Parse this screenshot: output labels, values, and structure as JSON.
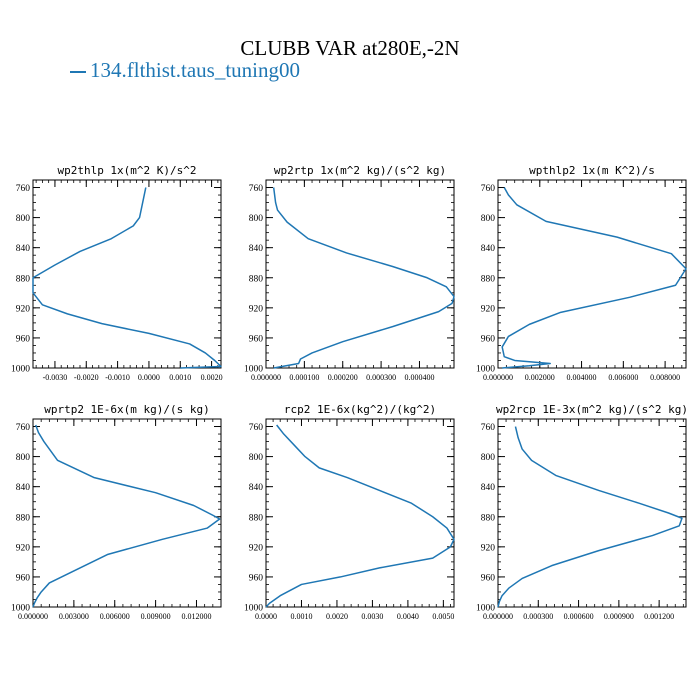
{
  "figure": {
    "title": "CLUBB VAR at280E,-2N",
    "legend_label": "134.flthist.taus_tuning00",
    "line_color": "#1f77b4"
  },
  "chart_data": [
    {
      "type": "line",
      "title": "wp2thlp  1x(m^2 K)/s^2",
      "xlim": [
        -0.0037,
        0.0023
      ],
      "ylim": [
        1000,
        750
      ],
      "xticks": [
        -0.003,
        -0.002,
        -0.001,
        0.0,
        0.001,
        0.002
      ],
      "xticklabels": [
        "-0.0030",
        "-0.0020",
        "-0.0010",
        "0.0000",
        "0.0010",
        "0.0020"
      ],
      "yticks": [
        760,
        800,
        840,
        880,
        920,
        960,
        1000
      ],
      "yticklabels": [
        "760",
        "800",
        "840",
        "880",
        "920",
        "960",
        "1000"
      ],
      "series": [
        {
          "x": [
            -0.0001,
            -0.0002,
            -0.0003,
            -0.0005,
            -0.0012,
            -0.0022,
            -0.003,
            -0.0037,
            -0.0037,
            -0.0034,
            -0.0026,
            -0.0015,
            0.0,
            0.0013,
            0.0018,
            0.0021,
            0.0023,
            0.001
          ],
          "y": [
            760,
            780,
            800,
            811,
            828,
            845,
            863,
            880,
            900,
            916,
            928,
            941,
            954,
            968,
            980,
            990,
            998,
            1000
          ]
        }
      ]
    },
    {
      "type": "line",
      "title": "wp2rtp  1x(m^2 kg)/(s^2 kg)",
      "xlim": [
        0.0,
        0.00049
      ],
      "ylim": [
        1000,
        750
      ],
      "xticks": [
        0.0,
        0.0001,
        0.0002,
        0.0003,
        0.0004
      ],
      "xticklabels": [
        "0.000000",
        "0.000100",
        "0.000200",
        "0.000300",
        "0.000400"
      ],
      "yticks": [
        760,
        800,
        840,
        880,
        920,
        960,
        1000
      ],
      "yticklabels": [
        "760",
        "800",
        "840",
        "880",
        "920",
        "960",
        "1000"
      ],
      "series": [
        {
          "x": [
            2e-05,
            2.5e-05,
            3e-05,
            5.5e-05,
            0.00011,
            0.00021,
            0.00033,
            0.00042,
            0.00047,
            0.00049,
            0.000485,
            0.00045,
            0.00033,
            0.0002,
            0.00012,
            9e-05,
            8.5e-05,
            2e-05
          ],
          "y": [
            760,
            780,
            790,
            806,
            828,
            847,
            865,
            880,
            892,
            905,
            914,
            925,
            945,
            965,
            980,
            988,
            994,
            1000
          ]
        }
      ]
    },
    {
      "type": "line",
      "title": "wpthlp2  1x(m K^2)/s",
      "xlim": [
        0.0,
        0.009
      ],
      "ylim": [
        1000,
        750
      ],
      "xticks": [
        0.0,
        0.002,
        0.004,
        0.006,
        0.008
      ],
      "xticklabels": [
        "0.000000",
        "0.002000",
        "0.004000",
        "0.006000",
        "0.008000"
      ],
      "yticks": [
        760,
        800,
        840,
        880,
        920,
        960,
        1000
      ],
      "yticklabels": [
        "760",
        "800",
        "840",
        "880",
        "920",
        "960",
        "1000"
      ],
      "series": [
        {
          "x": [
            0.0003,
            0.0005,
            0.0009,
            0.0023,
            0.0057,
            0.0083,
            0.009,
            0.0085,
            0.0063,
            0.003,
            0.0015,
            0.0005,
            0.0002,
            0.0003,
            0.0008,
            0.0025,
            0.0015,
            0.0002
          ],
          "y": [
            760,
            770,
            783,
            805,
            826,
            848,
            868,
            890,
            906,
            926,
            942,
            958,
            972,
            985,
            990,
            994,
            997,
            1000
          ]
        }
      ]
    },
    {
      "type": "line",
      "title": "wprtp2  1E-6x(m kg)/(s kg)",
      "xlim": [
        0.0,
        0.0138
      ],
      "ylim": [
        1000,
        750
      ],
      "xticks": [
        0.0,
        0.003,
        0.006,
        0.009,
        0.012
      ],
      "xticklabels": [
        "0.000000",
        "0.003000",
        "0.006000",
        "0.009000",
        "0.012000"
      ],
      "yticks": [
        760,
        800,
        840,
        880,
        920,
        960,
        1000
      ],
      "yticklabels": [
        "760",
        "800",
        "840",
        "880",
        "920",
        "960",
        "1000"
      ],
      "series": [
        {
          "x": [
            0.0002,
            0.0004,
            0.0008,
            0.0018,
            0.0045,
            0.009,
            0.0118,
            0.0132,
            0.0137,
            0.0128,
            0.0095,
            0.0055,
            0.003,
            0.0012,
            0.0006,
            0.0003,
            0.0001,
            0.0
          ],
          "y": [
            758,
            768,
            780,
            805,
            828,
            848,
            865,
            878,
            883,
            895,
            910,
            930,
            952,
            968,
            980,
            988,
            995,
            1000
          ]
        }
      ]
    },
    {
      "type": "line",
      "title": "rcp2  1E-6x(kg^2)/(kg^2)",
      "xlim": [
        0.0,
        0.0053
      ],
      "ylim": [
        1000,
        750
      ],
      "xticks": [
        0.0,
        0.001,
        0.002,
        0.003,
        0.004,
        0.005
      ],
      "xticklabels": [
        "0.0000",
        "0.0010",
        "0.0020",
        "0.0030",
        "0.0040",
        "0.0050"
      ],
      "yticks": [
        760,
        800,
        840,
        880,
        920,
        960,
        1000
      ],
      "yticklabels": [
        "760",
        "800",
        "840",
        "880",
        "920",
        "960",
        "1000"
      ],
      "series": [
        {
          "x": [
            0.0003,
            0.0005,
            0.0008,
            0.0011,
            0.0015,
            0.0023,
            0.0032,
            0.0041,
            0.0047,
            0.0051,
            0.0053,
            0.0052,
            0.0047,
            0.0032,
            0.0021,
            0.001,
            0.0004,
            0.0001,
            0.0
          ],
          "y": [
            758,
            770,
            785,
            800,
            815,
            828,
            845,
            862,
            880,
            895,
            910,
            920,
            935,
            948,
            960,
            970,
            985,
            995,
            1000
          ]
        }
      ]
    },
    {
      "type": "line",
      "title": "wp2rcp  1E-3x(m^2 kg)/(s^2 kg)",
      "xlim": [
        0.0,
        0.0014
      ],
      "ylim": [
        1000,
        750
      ],
      "xticks": [
        0.0,
        0.0003,
        0.0006,
        0.0009,
        0.0012
      ],
      "xticklabels": [
        "0.000000",
        "0.000300",
        "0.000600",
        "0.000900",
        "0.001200"
      ],
      "yticks": [
        760,
        800,
        840,
        880,
        920,
        960,
        1000
      ],
      "yticklabels": [
        "760",
        "800",
        "840",
        "880",
        "920",
        "960",
        "1000"
      ],
      "series": [
        {
          "x": [
            0.00013,
            0.00015,
            0.00018,
            0.00025,
            0.00043,
            0.00075,
            0.00105,
            0.00127,
            0.00137,
            0.00135,
            0.00115,
            0.00075,
            0.0004,
            0.00018,
            8e-05,
            3e-05,
            1e-05,
            0.0
          ],
          "y": [
            760,
            775,
            790,
            805,
            825,
            845,
            862,
            875,
            882,
            892,
            905,
            925,
            945,
            962,
            975,
            985,
            993,
            1000
          ]
        }
      ]
    }
  ]
}
